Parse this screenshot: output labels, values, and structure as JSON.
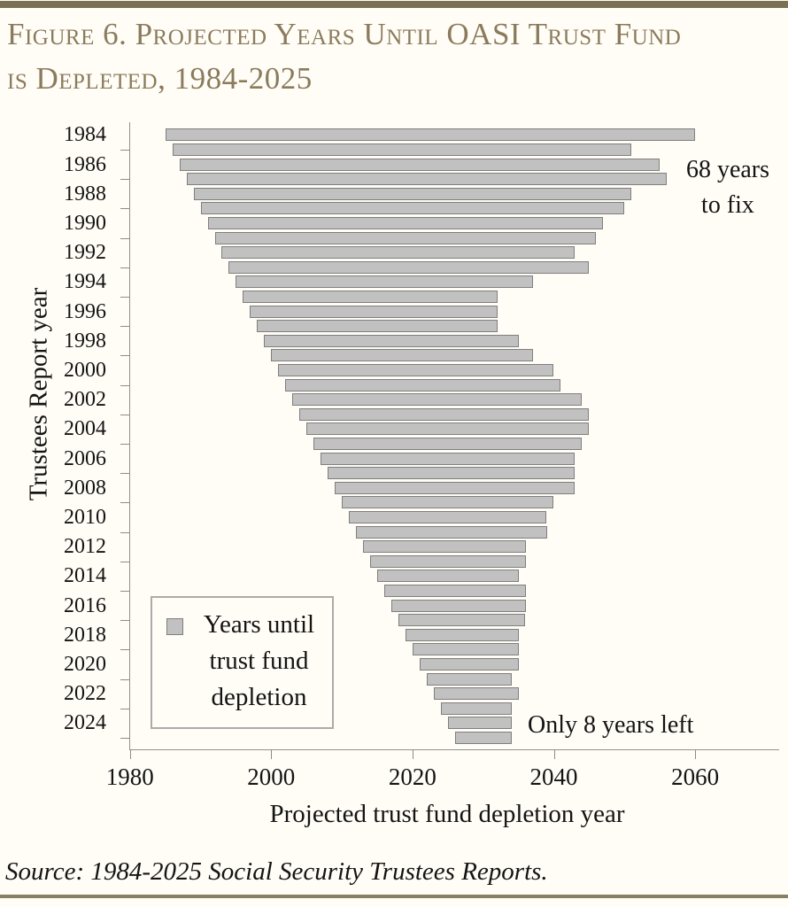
{
  "page": {
    "title_lines": [
      "Figure 6. Projected Years Until OASI Trust Fund",
      "is Depleted, 1984-2025"
    ],
    "source": "Source: 1984-2025 Social Security Trustees Reports.",
    "colors": {
      "title": "#8b7b5d",
      "top_rule": "#7a7053",
      "bottom_rule": "#878061",
      "bar_fill": "#c1c1c1",
      "bar_border": "#7f7f7f",
      "axis": "#909090",
      "text": "#141414",
      "background": "#fffdf6"
    }
  },
  "chart_data": {
    "type": "bar",
    "orientation": "horizontal",
    "title": "Figure 6. Projected Years Until OASI Trust Fund is Depleted, 1984-2025",
    "xlabel": "Projected trust fund depletion year",
    "ylabel": "Trustees Report year",
    "x_ticks": [
      1980,
      2000,
      2020,
      2040,
      2060
    ],
    "x_axis_range": [
      1980,
      2072
    ],
    "y_tick_labels": [
      "1984",
      "1986",
      "1988",
      "1990",
      "1992",
      "1994",
      "1996",
      "1998",
      "2000",
      "2002",
      "2004",
      "2006",
      "2008",
      "2010",
      "2012",
      "2014",
      "2016",
      "2018",
      "2020",
      "2022",
      "2024"
    ],
    "grid": false,
    "legend": {
      "position": "lower-left-inside",
      "swatch_color": "#c1c1c1",
      "lines": [
        "Years until",
        "trust fund",
        "depletion"
      ]
    },
    "bars": [
      {
        "report_year": 1984,
        "depletion_year": 2059,
        "years_until": 75
      },
      {
        "report_year": 1985,
        "depletion_year": 2050,
        "years_until": 65
      },
      {
        "report_year": 1986,
        "depletion_year": 2054,
        "years_until": 68
      },
      {
        "report_year": 1987,
        "depletion_year": 2055,
        "years_until": 68
      },
      {
        "report_year": 1988,
        "depletion_year": 2050,
        "years_until": 62
      },
      {
        "report_year": 1989,
        "depletion_year": 2049,
        "years_until": 60
      },
      {
        "report_year": 1990,
        "depletion_year": 2046,
        "years_until": 56
      },
      {
        "report_year": 1991,
        "depletion_year": 2045,
        "years_until": 54
      },
      {
        "report_year": 1992,
        "depletion_year": 2042,
        "years_until": 50
      },
      {
        "report_year": 1993,
        "depletion_year": 2044,
        "years_until": 51
      },
      {
        "report_year": 1994,
        "depletion_year": 2036,
        "years_until": 42
      },
      {
        "report_year": 1995,
        "depletion_year": 2031,
        "years_until": 36
      },
      {
        "report_year": 1996,
        "depletion_year": 2031,
        "years_until": 35
      },
      {
        "report_year": 1997,
        "depletion_year": 2031,
        "years_until": 34
      },
      {
        "report_year": 1998,
        "depletion_year": 2034,
        "years_until": 36
      },
      {
        "report_year": 1999,
        "depletion_year": 2036,
        "years_until": 37
      },
      {
        "report_year": 2000,
        "depletion_year": 2039,
        "years_until": 39
      },
      {
        "report_year": 2001,
        "depletion_year": 2040,
        "years_until": 39
      },
      {
        "report_year": 2002,
        "depletion_year": 2043,
        "years_until": 41
      },
      {
        "report_year": 2003,
        "depletion_year": 2044,
        "years_until": 41
      },
      {
        "report_year": 2004,
        "depletion_year": 2044,
        "years_until": 40
      },
      {
        "report_year": 2005,
        "depletion_year": 2043,
        "years_until": 38
      },
      {
        "report_year": 2006,
        "depletion_year": 2042,
        "years_until": 36
      },
      {
        "report_year": 2007,
        "depletion_year": 2042,
        "years_until": 35
      },
      {
        "report_year": 2008,
        "depletion_year": 2042,
        "years_until": 34
      },
      {
        "report_year": 2009,
        "depletion_year": 2039,
        "years_until": 30
      },
      {
        "report_year": 2010,
        "depletion_year": 2038,
        "years_until": 28
      },
      {
        "report_year": 2011,
        "depletion_year": 2038,
        "years_until": 27
      },
      {
        "report_year": 2012,
        "depletion_year": 2035,
        "years_until": 23
      },
      {
        "report_year": 2013,
        "depletion_year": 2035,
        "years_until": 22
      },
      {
        "report_year": 2014,
        "depletion_year": 2034,
        "years_until": 20
      },
      {
        "report_year": 2015,
        "depletion_year": 2035,
        "years_until": 20
      },
      {
        "report_year": 2016,
        "depletion_year": 2035,
        "years_until": 19
      },
      {
        "report_year": 2017,
        "depletion_year": 2035,
        "years_until": 18
      },
      {
        "report_year": 2018,
        "depletion_year": 2034,
        "years_until": 16
      },
      {
        "report_year": 2019,
        "depletion_year": 2034,
        "years_until": 15
      },
      {
        "report_year": 2020,
        "depletion_year": 2034,
        "years_until": 14
      },
      {
        "report_year": 2021,
        "depletion_year": 2033,
        "years_until": 12
      },
      {
        "report_year": 2022,
        "depletion_year": 2034,
        "years_until": 12
      },
      {
        "report_year": 2023,
        "depletion_year": 2033,
        "years_until": 10
      },
      {
        "report_year": 2024,
        "depletion_year": 2033,
        "years_until": 9
      },
      {
        "report_year": 2025,
        "depletion_year": 2033,
        "years_until": 8
      }
    ],
    "annotations": [
      {
        "id": "sixty-eight-years-to-fix",
        "lines": [
          "68 years",
          "to fix"
        ],
        "anchor_report_year": 1987
      },
      {
        "id": "only-eight-years-left",
        "lines": [
          "Only 8 years left"
        ],
        "anchor_report_year": 2025
      }
    ]
  }
}
